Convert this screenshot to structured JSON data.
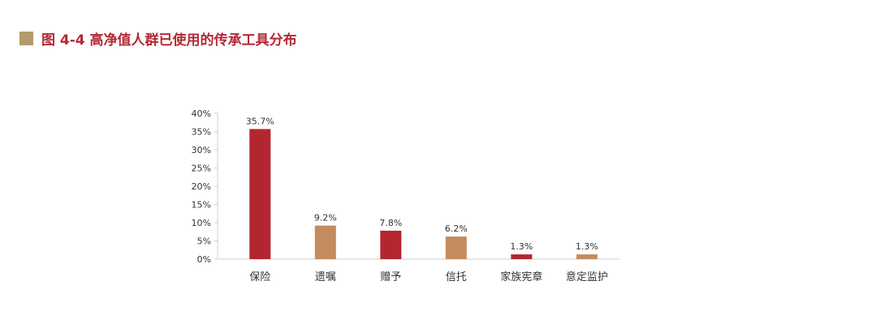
{
  "figure_title": "图 4-4  高净值人群已使用的传承工具分布",
  "colors": {
    "title_text": "#b22a35",
    "title_marker": "#b49a6c",
    "bar_red": "#b4262f",
    "bar_tan": "#c38b5e",
    "axis": "#cccccc",
    "label_text": "#333333"
  },
  "chart_data": {
    "type": "bar",
    "title": "",
    "xlabel": "",
    "ylabel": "",
    "categories": [
      "保险",
      "遗嘱",
      "赠予",
      "信托",
      "家族宪章",
      "意定监护"
    ],
    "values": [
      35.7,
      9.2,
      7.8,
      6.2,
      1.3,
      1.3
    ],
    "data_labels": [
      "35.7%",
      "9.2%",
      "7.8%",
      "6.2%",
      "1.3%",
      "1.3%"
    ],
    "bar_colors": [
      "bar_red",
      "bar_tan",
      "bar_red",
      "bar_tan",
      "bar_red",
      "bar_tan"
    ],
    "ylim": [
      0,
      40
    ],
    "yticks": [
      0,
      5,
      10,
      15,
      20,
      25,
      30,
      35,
      40
    ],
    "ytick_labels": [
      "0%",
      "5%",
      "10%",
      "15%",
      "20%",
      "25%",
      "30%",
      "35%",
      "40%"
    ],
    "grid": false,
    "legend": "none"
  }
}
